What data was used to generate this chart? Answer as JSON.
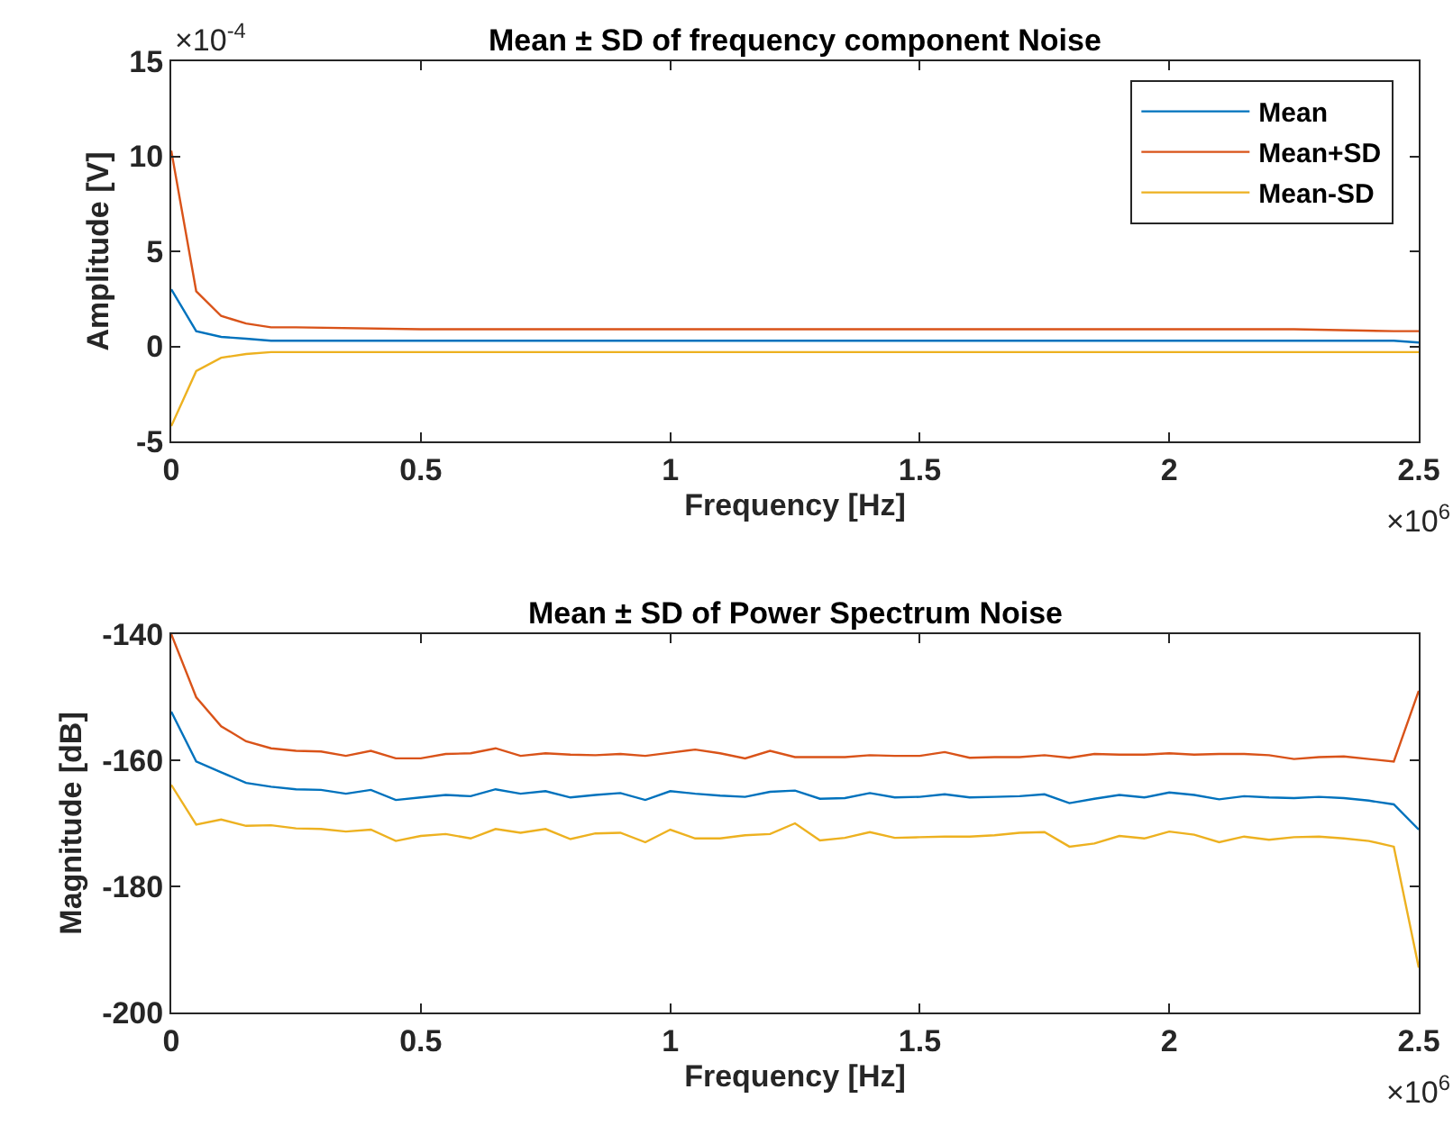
{
  "chart_data": [
    {
      "type": "line",
      "title": "Mean ± SD of frequency component Noise",
      "xlabel": "Frequency [Hz]",
      "ylabel": "Amplitude [V]",
      "x": [
        0,
        0.05,
        0.1,
        0.15,
        0.2,
        0.25,
        0.5,
        0.75,
        1,
        1.25,
        1.5,
        1.75,
        2,
        2.25,
        2.45,
        2.5
      ],
      "series": [
        {
          "name": "Mean",
          "color": "#0072bd",
          "values": [
            3.0,
            0.8,
            0.5,
            0.4,
            0.3,
            0.3,
            0.3,
            0.3,
            0.3,
            0.3,
            0.3,
            0.3,
            0.3,
            0.3,
            0.3,
            0.2
          ]
        },
        {
          "name": "Mean+SD",
          "color": "#d95319",
          "values": [
            10.3,
            2.9,
            1.6,
            1.2,
            1.0,
            1.0,
            0.9,
            0.9,
            0.9,
            0.9,
            0.9,
            0.9,
            0.9,
            0.9,
            0.8,
            0.8
          ]
        },
        {
          "name": "Mean-SD",
          "color": "#edb120",
          "values": [
            -4.2,
            -1.3,
            -0.6,
            -0.4,
            -0.3,
            -0.3,
            -0.3,
            -0.3,
            -0.3,
            -0.3,
            -0.3,
            -0.3,
            -0.3,
            -0.3,
            -0.3,
            -0.3
          ]
        }
      ],
      "xlim": [
        0,
        2.5
      ],
      "xticks": [
        0,
        0.5,
        1,
        1.5,
        2,
        2.5
      ],
      "ylim": [
        -5,
        15
      ],
      "yticks": [
        -5,
        0,
        5,
        10,
        15
      ],
      "annotations": [
        "×10$^{-4}$",
        "×10$^{6}$"
      ],
      "legend": "top right"
    },
    {
      "type": "line",
      "title": "Mean ± SD of Power Spectrum Noise",
      "xlabel": "Frequency [Hz]",
      "ylabel": "Magnitude [dB]",
      "x": [
        0,
        0.05,
        0.1,
        0.15,
        0.2,
        0.25,
        0.3,
        0.35,
        0.4,
        0.45,
        0.5,
        0.55,
        0.6,
        0.65,
        0.7,
        0.75,
        0.8,
        0.85,
        0.9,
        0.95,
        1,
        1.05,
        1.1,
        1.15,
        1.2,
        1.25,
        1.3,
        1.35,
        1.4,
        1.45,
        1.5,
        1.55,
        1.6,
        1.65,
        1.7,
        1.75,
        1.8,
        1.85,
        1.9,
        1.95,
        2,
        2.05,
        2.1,
        2.15,
        2.2,
        2.25,
        2.3,
        2.35,
        2.4,
        2.45,
        2.5
      ],
      "series": [
        {
          "color": "#0072bd",
          "values": [
            -152.3,
            -160.2,
            -161.9,
            -163.6,
            -164.2,
            -164.6,
            -164.7,
            -165.3,
            -164.7,
            -166.3,
            -165.9,
            -165.5,
            -165.7,
            -164.6,
            -165.3,
            -164.9,
            -165.9,
            -165.5,
            -165.2,
            -166.3,
            -164.9,
            -165.3,
            -165.6,
            -165.8,
            -165.0,
            -164.8,
            -166.1,
            -166.0,
            -165.2,
            -165.9,
            -165.8,
            -165.4,
            -165.9,
            -165.8,
            -165.7,
            -165.4,
            -166.8,
            -166.1,
            -165.5,
            -165.9,
            -165.1,
            -165.5,
            -166.2,
            -165.7,
            -165.9,
            -166.0,
            -165.8,
            -166.0,
            -166.4,
            -167.0,
            -171.0
          ]
        },
        {
          "color": "#d95319",
          "values": [
            -140.0,
            -150.0,
            -154.6,
            -157.0,
            -158.1,
            -158.5,
            -158.6,
            -159.3,
            -158.5,
            -159.7,
            -159.7,
            -159.0,
            -158.9,
            -158.1,
            -159.3,
            -158.9,
            -159.1,
            -159.2,
            -159.0,
            -159.3,
            -158.8,
            -158.3,
            -158.9,
            -159.7,
            -158.5,
            -159.5,
            -159.5,
            -159.5,
            -159.2,
            -159.3,
            -159.3,
            -158.7,
            -159.6,
            -159.5,
            -159.5,
            -159.2,
            -159.6,
            -159.0,
            -159.1,
            -159.1,
            -158.9,
            -159.1,
            -159.0,
            -159.0,
            -159.2,
            -159.8,
            -159.5,
            -159.4,
            -159.8,
            -160.2,
            -149.0
          ]
        },
        {
          "color": "#edb120",
          "values": [
            -163.9,
            -170.2,
            -169.4,
            -170.4,
            -170.3,
            -170.8,
            -170.9,
            -171.3,
            -171.0,
            -172.8,
            -172.0,
            -171.7,
            -172.4,
            -170.9,
            -171.5,
            -170.9,
            -172.5,
            -171.6,
            -171.5,
            -173.0,
            -171.0,
            -172.4,
            -172.4,
            -171.9,
            -171.7,
            -170.0,
            -172.7,
            -172.3,
            -171.4,
            -172.3,
            -172.2,
            -172.1,
            -172.1,
            -171.9,
            -171.5,
            -171.4,
            -173.7,
            -173.2,
            -172.0,
            -172.4,
            -171.3,
            -171.8,
            -173.0,
            -172.1,
            -172.6,
            -172.2,
            -172.1,
            -172.4,
            -172.8,
            -173.7,
            -192.9
          ]
        }
      ],
      "xlim": [
        0,
        2.5
      ],
      "xticks": [
        0,
        0.5,
        1,
        1.5,
        2,
        2.5
      ],
      "ylim": [
        -200,
        -140
      ],
      "yticks": [
        -200,
        -180,
        -160,
        -140
      ],
      "annotations": [
        "×10$^{6}$"
      ]
    }
  ]
}
